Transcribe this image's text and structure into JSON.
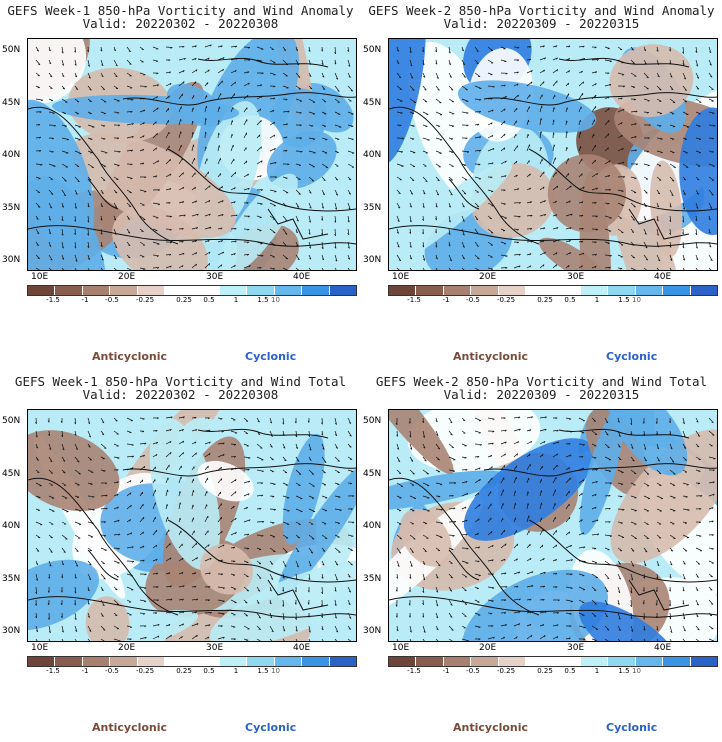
{
  "panels": [
    {
      "title_line1": "GEFS Week-1 850-hPa Vorticity and Wind Anomaly",
      "title_line2": "Valid: 20220302 - 20220308",
      "type": "anomaly",
      "seed": 11
    },
    {
      "title_line1": "GEFS Week-2 850-hPa Vorticity and Wind Anomaly",
      "title_line2": "Valid: 20220309 - 20220315",
      "type": "anomaly",
      "seed": 23
    },
    {
      "title_line1": "GEFS Week-1 850-hPa Vorticity and Wind Total",
      "title_line2": "Valid: 20220302 - 20220308",
      "type": "total",
      "seed": 37
    },
    {
      "title_line1": "GEFS Week-2 850-hPa Vorticity and Wind Total",
      "title_line2": "Valid: 20220309 - 20220315",
      "type": "total",
      "seed": 51
    }
  ],
  "lat_labels": [
    "50N",
    "45N",
    "40N",
    "35N",
    "30N"
  ],
  "lon_labels": [
    "10E",
    "20E",
    "30E",
    "40E"
  ],
  "colorbar": {
    "tick_labels": [
      "-1.5",
      "-1",
      "-0.5",
      "-0.25",
      "0.25",
      "0.5",
      "1",
      "1.5"
    ],
    "unit_label": "10",
    "colors": [
      "#6e4538",
      "#8a5e4e",
      "#a88070",
      "#c8a898",
      "#e6d2c8",
      "#ffffff",
      "#ffffff",
      "#bff0f8",
      "#8fd8f0",
      "#66b8ec",
      "#3a94e6",
      "#2a62c8"
    ]
  },
  "legend": {
    "anticyclonic": "Anticyclonic",
    "cyclonic": "Cyclonic"
  },
  "palette": {
    "anti_strong": "#7a4f40",
    "anti_mid": "#a98474",
    "anti_weak": "#d6bbae",
    "neutral": "#ffffff",
    "cyc_weak": "#b9ecf6",
    "cyc_mid": "#5eaee9",
    "cyc_strong": "#2f7de0"
  }
}
